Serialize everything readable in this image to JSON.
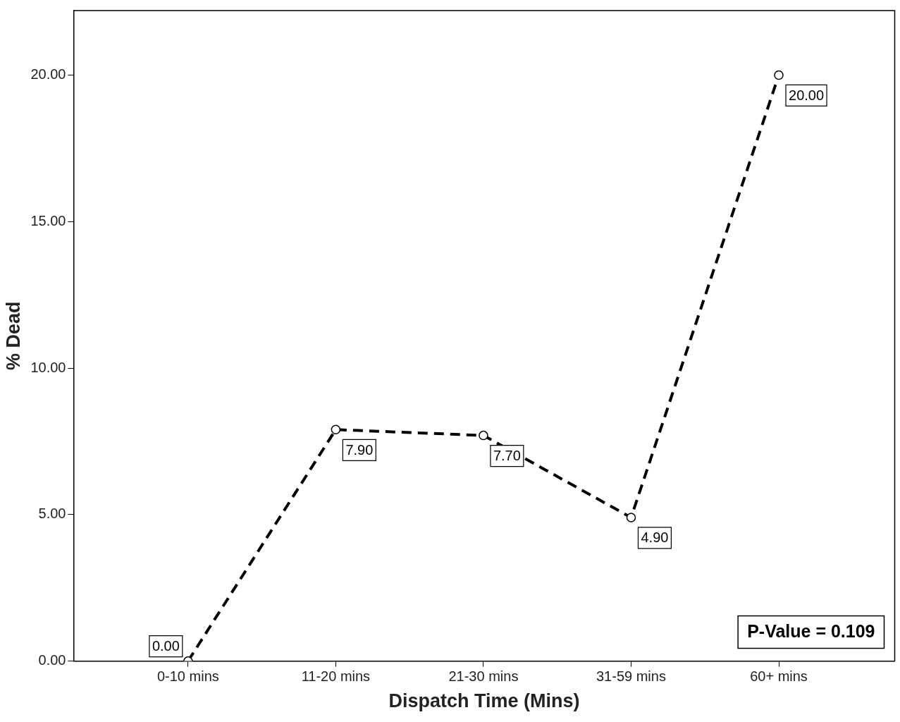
{
  "chart_data": {
    "type": "line",
    "xlabel": "Dispatch Time (Mins)",
    "ylabel": "% Dead",
    "categories": [
      "0-10 mins",
      "11-20 mins",
      "21-30 mins",
      "31-59 mins",
      "60+ mins"
    ],
    "series": [
      {
        "color": "#000000",
        "values": [
          0,
          7.9,
          7.7,
          4.9,
          20
        ],
        "value_labels": [
          "0.00",
          "7.90",
          "7.70",
          "4.90",
          "20.00"
        ]
      }
    ],
    "ylim": [
      0,
      22.2
    ],
    "yticks": [
      {
        "value": 0,
        "label": "0.00"
      },
      {
        "value": 5,
        "label": "5.00"
      },
      {
        "value": 10,
        "label": "10.00"
      },
      {
        "value": 15,
        "label": "15.00"
      },
      {
        "value": 20,
        "label": "20.00"
      }
    ],
    "grid": false,
    "legend": false,
    "marker": "circle",
    "line_style": "dashed",
    "annotations": [
      "P-Value = 0.109"
    ]
  }
}
